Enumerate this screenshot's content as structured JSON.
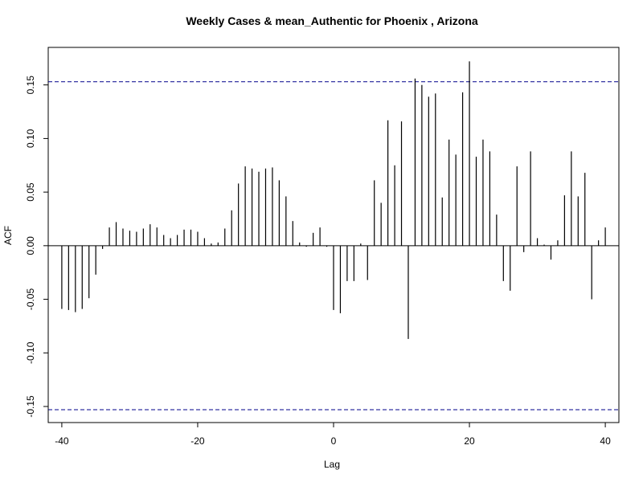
{
  "chart_data": {
    "type": "bar",
    "title": "Weekly Cases & mean_Authentic for Phoenix , Arizona",
    "xlabel": "Lag",
    "ylabel": "ACF",
    "xlim": [
      -42,
      42
    ],
    "ylim": [
      -0.165,
      0.185
    ],
    "x_ticks": [
      -40,
      -20,
      0,
      20,
      40
    ],
    "x_tick_labels": [
      "-40",
      "-20",
      "0",
      "20",
      "40"
    ],
    "y_ticks": [
      -0.15,
      -0.1,
      -0.05,
      0.0,
      0.05,
      0.1,
      0.15
    ],
    "y_tick_labels": [
      "-0.15",
      "-0.10",
      "-0.05",
      "0.00",
      "0.05",
      "0.10",
      "0.15"
    ],
    "confidence_bound": 0.153,
    "confidence_line_color": "#00008b",
    "grid": false,
    "series": [
      {
        "lags": [
          -40,
          -39,
          -38,
          -37,
          -36,
          -35,
          -34,
          -33,
          -32,
          -31,
          -30,
          -29,
          -28,
          -27,
          -26,
          -25,
          -24,
          -23,
          -22,
          -21,
          -20,
          -19,
          -18,
          -17,
          -16,
          -15,
          -14,
          -13,
          -12,
          -11,
          -10,
          -9,
          -8,
          -7,
          -6,
          -5,
          -4,
          -3,
          -2,
          -1,
          0,
          1,
          2,
          3,
          4,
          5,
          6,
          7,
          8,
          9,
          10,
          11,
          12,
          13,
          14,
          15,
          16,
          17,
          18,
          19,
          20,
          21,
          22,
          23,
          24,
          25,
          26,
          27,
          28,
          29,
          30,
          31,
          32,
          33,
          34,
          35,
          36,
          37,
          38,
          39,
          40
        ],
        "values": [
          -0.059,
          -0.06,
          -0.062,
          -0.059,
          -0.049,
          -0.027,
          -0.003,
          0.017,
          0.022,
          0.016,
          0.014,
          0.013,
          0.016,
          0.02,
          0.017,
          0.01,
          0.007,
          0.01,
          0.015,
          0.015,
          0.013,
          0.007,
          0.002,
          0.003,
          0.016,
          0.033,
          0.058,
          0.074,
          0.072,
          0.069,
          0.072,
          0.073,
          0.061,
          0.046,
          0.023,
          0.003,
          -0.001,
          0.012,
          0.017,
          -0.001,
          -0.06,
          -0.063,
          -0.033,
          -0.033,
          0.002,
          -0.032,
          0.061,
          0.04,
          0.117,
          0.075,
          0.116,
          -0.087,
          0.156,
          0.15,
          0.139,
          0.142,
          0.045,
          0.099,
          0.085,
          0.143,
          0.172,
          0.083,
          0.099,
          0.088,
          0.029,
          -0.033,
          -0.042,
          0.074,
          -0.006,
          0.088,
          0.007,
          0.001,
          -0.013,
          0.005,
          0.047,
          0.088,
          0.046,
          0.068,
          -0.05,
          0.005,
          0.017
        ]
      }
    ]
  }
}
